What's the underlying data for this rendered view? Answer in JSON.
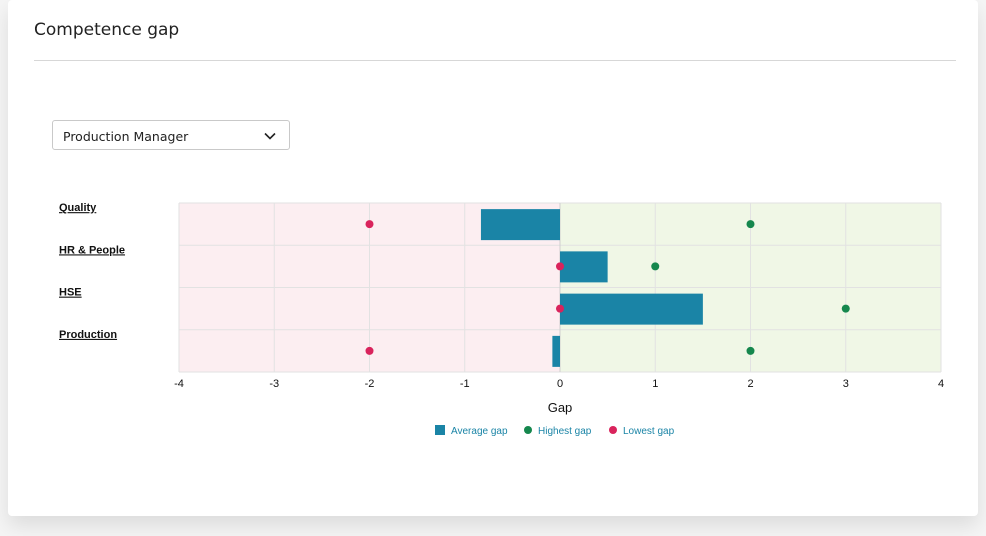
{
  "title": "Competence gap",
  "role_select": {
    "value": "Production Manager",
    "icon": "chevron-down-icon"
  },
  "colors": {
    "negative_zone": "#fceef1",
    "positive_zone": "#f0f7e6",
    "average": "#1a84a6",
    "highest": "#15874d",
    "lowest": "#d9235c",
    "legend_text": "#1a84a6"
  },
  "chart_data": {
    "type": "bar",
    "orientation": "horizontal",
    "categories": [
      "Quality",
      "HR & People",
      "HSE",
      "Production"
    ],
    "series": [
      {
        "name": "Average gap",
        "kind": "bar",
        "values": [
          -0.83,
          0.5,
          1.5,
          -0.08
        ]
      },
      {
        "name": "Highest gap",
        "kind": "point",
        "values": [
          2,
          1,
          3,
          2
        ]
      },
      {
        "name": "Lowest gap",
        "kind": "point",
        "values": [
          -2,
          0,
          0,
          -2
        ]
      }
    ],
    "xlabel": "Gap",
    "xlim": [
      -4,
      4
    ],
    "xticks": [
      "-4",
      "-3",
      "-2",
      "-1",
      "0",
      "1",
      "2",
      "3",
      "4"
    ],
    "grid": true,
    "legend_position": "bottom"
  }
}
